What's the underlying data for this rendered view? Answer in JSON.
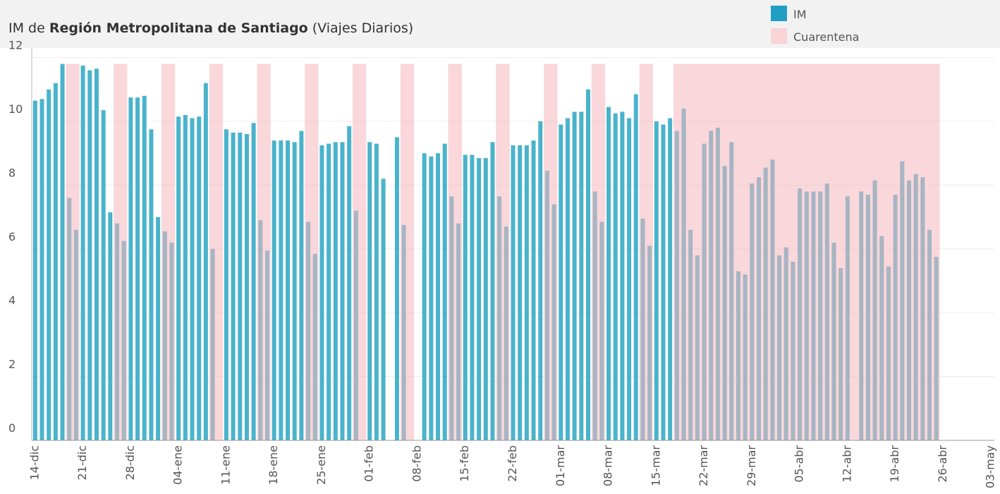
{
  "chart_data": {
    "type": "bar",
    "title": [
      "IM de",
      "Región Metropolitana de Santiago",
      "(Viajes Diarios)"
    ],
    "categories": [
      "14-dic",
      null,
      null,
      null,
      null,
      null,
      null,
      "21-dic",
      null,
      null,
      null,
      null,
      null,
      null,
      "28-dic",
      null,
      null,
      null,
      null,
      null,
      null,
      "04-ene",
      null,
      null,
      null,
      null,
      null,
      null,
      "11-ene",
      null,
      null,
      null,
      null,
      null,
      null,
      "18-ene",
      null,
      null,
      null,
      null,
      null,
      null,
      "25-ene",
      null,
      null,
      null,
      null,
      null,
      null,
      "01-feb",
      null,
      null,
      null,
      null,
      null,
      null,
      "08-feb",
      null,
      null,
      null,
      null,
      null,
      null,
      "15-feb",
      null,
      null,
      null,
      null,
      null,
      null,
      "22-feb",
      null,
      null,
      null,
      null,
      null,
      null,
      "01-mar",
      null,
      null,
      null,
      null,
      null,
      null,
      "08-mar",
      null,
      null,
      null,
      null,
      null,
      null,
      "15-mar",
      null,
      null,
      null,
      null,
      null,
      null,
      "22-mar",
      null,
      null,
      null,
      null,
      null,
      null,
      "29-mar",
      null,
      null,
      null,
      null,
      null,
      null,
      "05-abr",
      null,
      null,
      null,
      null,
      null,
      null,
      "12-abr",
      null,
      null,
      null,
      null,
      null,
      null,
      "19-abr",
      null,
      null,
      null,
      null,
      null,
      null,
      "26-abr",
      null,
      null,
      null,
      null,
      null,
      null,
      "03-may"
    ],
    "series": [
      {
        "name": "IM",
        "color": "#4ab3cc",
        "values": [
          10.65,
          10.7,
          11.0,
          11.2,
          11.8,
          7.6,
          6.6,
          11.75,
          11.6,
          11.65,
          10.35,
          7.15,
          6.8,
          6.25,
          10.75,
          10.75,
          10.8,
          9.75,
          7.0,
          6.55,
          6.2,
          10.15,
          10.2,
          10.1,
          10.15,
          11.2,
          6.0,
          null,
          9.75,
          9.65,
          9.65,
          9.6,
          9.95,
          6.9,
          5.95,
          9.4,
          9.4,
          9.4,
          9.35,
          9.7,
          6.85,
          5.85,
          9.25,
          9.3,
          9.35,
          9.35,
          9.85,
          7.2,
          null,
          9.35,
          9.3,
          8.2,
          null,
          9.5,
          6.75,
          null,
          null,
          9.0,
          8.9,
          9.0,
          9.3,
          7.65,
          6.8,
          8.95,
          8.95,
          8.85,
          8.85,
          9.35,
          7.65,
          6.7,
          9.25,
          9.25,
          9.25,
          9.4,
          10.0,
          8.45,
          7.4,
          9.9,
          10.1,
          10.3,
          10.3,
          11.0,
          7.8,
          6.85,
          10.45,
          10.25,
          10.3,
          10.1,
          10.85,
          6.95,
          6.1,
          10.0,
          9.9,
          10.1,
          9.7,
          10.4,
          6.6,
          5.8,
          9.3,
          9.7,
          9.8,
          8.6,
          9.35,
          5.3,
          5.2,
          8.05,
          8.25,
          8.55,
          8.8,
          5.8,
          6.05,
          5.6,
          7.9,
          7.8,
          7.8,
          7.8,
          8.05,
          6.2,
          5.4,
          7.65,
          null,
          7.8,
          7.7,
          8.15,
          6.4,
          5.45,
          7.7,
          8.75,
          8.15,
          8.35,
          8.25,
          6.6,
          5.75,
          null,
          null,
          null,
          null,
          null,
          null,
          null,
          null
        ]
      },
      {
        "name": "Cuarentena",
        "color": "#f4b6bb",
        "values": [
          null,
          null,
          null,
          null,
          null,
          11.8,
          11.8,
          null,
          null,
          null,
          null,
          null,
          11.8,
          11.8,
          null,
          null,
          null,
          null,
          null,
          11.8,
          11.8,
          null,
          null,
          null,
          null,
          null,
          11.8,
          11.8,
          null,
          null,
          null,
          null,
          null,
          11.8,
          11.8,
          null,
          null,
          null,
          null,
          null,
          11.8,
          11.8,
          null,
          null,
          null,
          null,
          null,
          11.8,
          11.8,
          null,
          null,
          null,
          null,
          null,
          11.8,
          11.8,
          null,
          null,
          null,
          null,
          null,
          11.8,
          11.8,
          null,
          null,
          null,
          null,
          null,
          11.8,
          11.8,
          null,
          null,
          null,
          null,
          null,
          11.8,
          11.8,
          null,
          null,
          null,
          null,
          null,
          11.8,
          11.8,
          null,
          null,
          null,
          null,
          null,
          11.8,
          11.8,
          null,
          null,
          null,
          11.8,
          11.8,
          11.8,
          11.8,
          11.8,
          11.8,
          11.8,
          11.8,
          11.8,
          11.8,
          11.8,
          11.8,
          11.8,
          11.8,
          11.8,
          11.8,
          11.8,
          11.8,
          11.8,
          11.8,
          11.8,
          11.8,
          11.8,
          11.8,
          11.8,
          11.8,
          11.8,
          11.8,
          11.8,
          11.8,
          11.8,
          11.8,
          11.8,
          11.8,
          11.8,
          11.8,
          11.8,
          11.8,
          11.8,
          null,
          null,
          null,
          null,
          null,
          null,
          null,
          null
        ]
      }
    ],
    "ylim": [
      0,
      12.3
    ],
    "yticks": [
      0,
      2,
      4,
      6,
      8,
      10,
      12
    ],
    "grid": true
  }
}
